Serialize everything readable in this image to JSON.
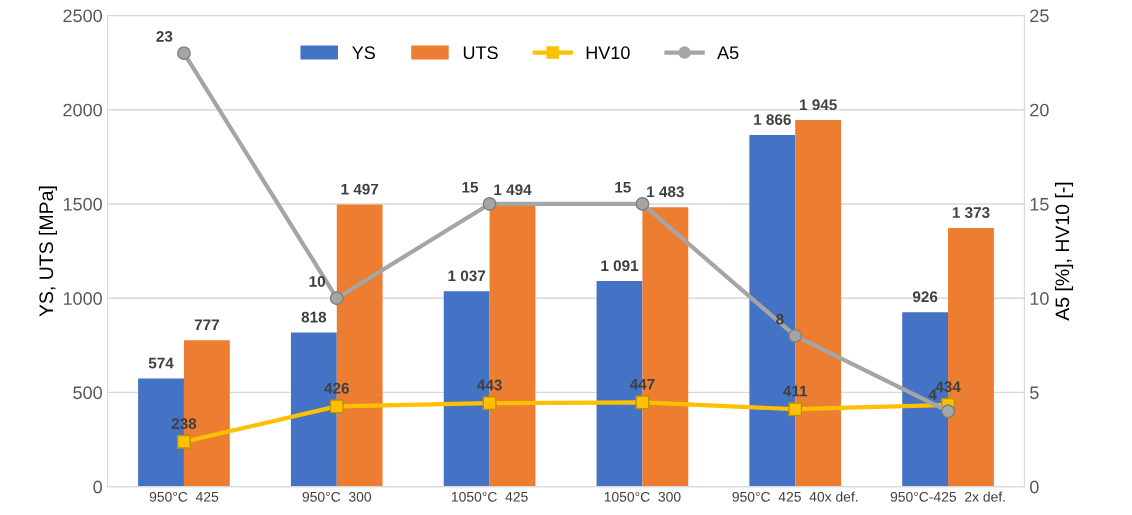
{
  "chart_data": {
    "type": "bar",
    "categories": [
      "950°C  425",
      "950°C  300",
      "1050°C  425",
      "1050°C  300",
      "950°C  425  40x def.",
      "950°C-425  2x def."
    ],
    "ylabel": "YS, UTS [MPa]",
    "y2label": "A5 [%], HV10 [-]",
    "ylim": [
      0,
      2500
    ],
    "yticks": [
      0,
      500,
      1000,
      1500,
      2000,
      2500
    ],
    "y2lim": [
      0,
      25
    ],
    "y2ticks": [
      0,
      5,
      10,
      15,
      20,
      25
    ],
    "grid": "y",
    "legend": "top",
    "data_labels": true,
    "series": [
      {
        "name": "YS",
        "color": "#4472c4",
        "values": [
          574,
          818,
          1037,
          1091,
          1866,
          926
        ],
        "value_labels": [
          "574",
          "818",
          "1 037",
          "1 091",
          "1 866",
          "926"
        ]
      },
      {
        "name": "UTS",
        "color": "#ed7d31",
        "values": [
          777,
          1497,
          1494,
          1483,
          1945,
          1373
        ],
        "value_labels": [
          "777",
          "1 497",
          "1 494",
          "1 483",
          "1 945",
          "1 373"
        ]
      },
      {
        "name": "HV10",
        "type": "line",
        "color": "#ffc000",
        "marker": "square",
        "values": [
          238,
          426,
          443,
          447,
          411,
          434
        ]
      },
      {
        "name": "A5",
        "type": "line",
        "axis": "y2",
        "color": "#a5a5a5",
        "marker": "circle",
        "values": [
          23,
          10,
          15,
          15,
          8,
          4
        ]
      }
    ]
  }
}
